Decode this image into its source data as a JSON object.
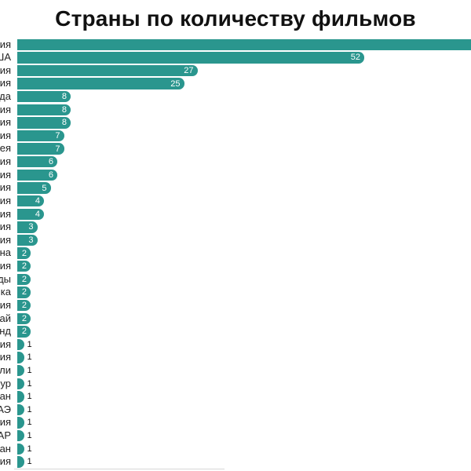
{
  "title": "Страны по количеству фильмов",
  "colors": {
    "bar": "#2a968e",
    "title_text": "#111111",
    "tick_text": "#222222",
    "value_inside": "#ffffff",
    "value_outside": "#111111",
    "axis_line": "#d6d6d6",
    "background": "#ffffff"
  },
  "chart_data": {
    "type": "bar",
    "orientation": "horizontal",
    "title": "Страны по количеству фильмов",
    "xlabel": "",
    "ylabel": "",
    "grid": false,
    "legend": false,
    "labels_clipped_left": true,
    "first_bar_clipped_right": true,
    "categories": [
      "ия",
      "ША",
      "ия",
      "ия",
      "да",
      "ия",
      "ия",
      "ия",
      "ея",
      "ия",
      "ия",
      "ия",
      "ия",
      "ия",
      "ия",
      "ия",
      "на",
      "ия",
      "ды",
      "ка",
      "ия",
      "ай",
      "нд",
      "ия",
      "ия",
      "ли",
      "ур",
      "ан",
      "АЭ",
      "ия",
      "АР",
      "ан",
      "ия"
    ],
    "values": [
      null,
      52,
      27,
      25,
      8,
      8,
      8,
      7,
      7,
      6,
      6,
      5,
      4,
      4,
      3,
      3,
      2,
      2,
      2,
      2,
      2,
      2,
      2,
      1,
      1,
      1,
      1,
      1,
      1,
      1,
      1,
      1,
      1
    ]
  }
}
